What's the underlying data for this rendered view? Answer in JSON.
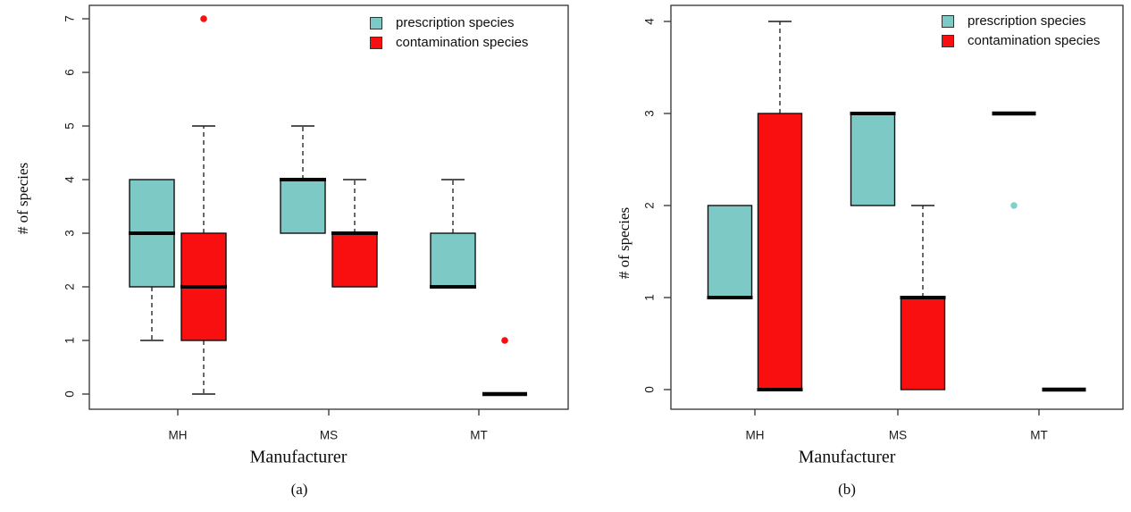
{
  "figure": {
    "background": "#ffffff",
    "axis_color": "#3f3f3f",
    "text_color": "#0c0c0c"
  },
  "chart_data": [
    {
      "id": "a",
      "type": "boxplot",
      "caption": "(a)",
      "title": "",
      "xlabel": "Manufacturer",
      "ylabel": "# of species",
      "ylim": [
        0,
        7
      ],
      "yticks": [
        0,
        1,
        2,
        3,
        4,
        5,
        6,
        7
      ],
      "categories": [
        "MH",
        "MS",
        "MT"
      ],
      "grid": false,
      "legend": {
        "position": "top-right",
        "items": [
          {
            "label": "prescription species",
            "color": "#7cc9c6"
          },
          {
            "label": "contamination species",
            "color": "#f90f0f"
          }
        ]
      },
      "series": [
        {
          "name": "prescription species",
          "color": "#7cc9c6",
          "boxes": [
            {
              "category": "MH",
              "q1": 2,
              "median": 3,
              "q3": 4,
              "whisker_low": 1,
              "whisker_high": 4,
              "outliers": []
            },
            {
              "category": "MS",
              "q1": 3,
              "median": 4,
              "q3": 4,
              "whisker_low": 3,
              "whisker_high": 5,
              "outliers": []
            },
            {
              "category": "MT",
              "q1": 2,
              "median": 2,
              "q3": 3,
              "whisker_low": 2,
              "whisker_high": 4,
              "outliers": []
            }
          ]
        },
        {
          "name": "contamination species",
          "color": "#f90f0f",
          "boxes": [
            {
              "category": "MH",
              "q1": 1,
              "median": 2,
              "q3": 3,
              "whisker_low": 0,
              "whisker_high": 5,
              "outliers": [
                7
              ]
            },
            {
              "category": "MS",
              "q1": 2,
              "median": 3,
              "q3": 3,
              "whisker_low": 2,
              "whisker_high": 4,
              "outliers": []
            },
            {
              "category": "MT",
              "q1": 0,
              "median": 0,
              "q3": 0,
              "whisker_low": 0,
              "whisker_high": 0,
              "outliers": [
                1
              ]
            }
          ]
        }
      ]
    },
    {
      "id": "b",
      "type": "boxplot",
      "caption": "(b)",
      "title": "",
      "xlabel": "Manufacturer",
      "ylabel": "# of species",
      "ylim": [
        0,
        4
      ],
      "yticks": [
        0,
        1,
        2,
        3,
        4
      ],
      "categories": [
        "MH",
        "MS",
        "MT"
      ],
      "grid": false,
      "legend": {
        "position": "top-right",
        "items": [
          {
            "label": "prescription species",
            "color": "#7cc9c6"
          },
          {
            "label": "contamination species",
            "color": "#f90f0f"
          }
        ]
      },
      "series": [
        {
          "name": "prescription species",
          "color": "#7cc9c6",
          "boxes": [
            {
              "category": "MH",
              "q1": 1,
              "median": 1,
              "q3": 2,
              "whisker_low": 1,
              "whisker_high": 2,
              "outliers": []
            },
            {
              "category": "MS",
              "q1": 2,
              "median": 3,
              "q3": 3,
              "whisker_low": 2,
              "whisker_high": 3,
              "outliers": []
            },
            {
              "category": "MT",
              "q1": 3,
              "median": 3,
              "q3": 3,
              "whisker_low": 3,
              "whisker_high": 3,
              "outliers": [
                2
              ]
            }
          ]
        },
        {
          "name": "contamination species",
          "color": "#f90f0f",
          "boxes": [
            {
              "category": "MH",
              "q1": 0,
              "median": 0,
              "q3": 3,
              "whisker_low": 0,
              "whisker_high": 4,
              "outliers": []
            },
            {
              "category": "MS",
              "q1": 0,
              "median": 1,
              "q3": 1,
              "whisker_low": 0,
              "whisker_high": 2,
              "outliers": []
            },
            {
              "category": "MT",
              "q1": 0,
              "median": 0,
              "q3": 0,
              "whisker_low": 0,
              "whisker_high": 0,
              "outliers": []
            }
          ]
        }
      ]
    }
  ]
}
